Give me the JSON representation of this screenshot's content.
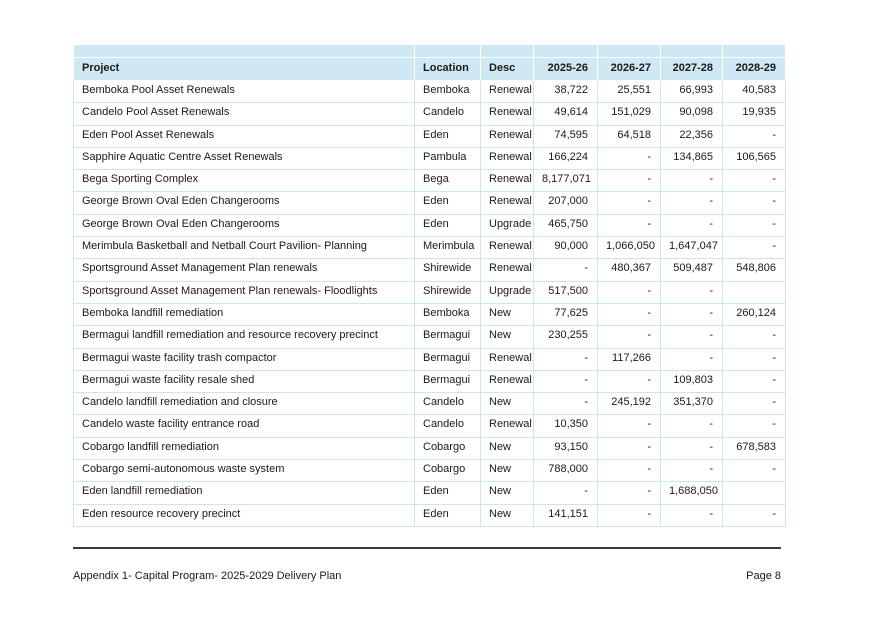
{
  "table": {
    "columns": [
      "Project",
      "Location",
      "Desc",
      "2025-26",
      "2026-27",
      "2027-28",
      "2028-29"
    ],
    "column_keys": [
      "project",
      "location",
      "desc",
      "2025-26",
      "2026-27",
      "2027-28",
      "2028-29"
    ],
    "rows": [
      [
        "Bemboka Pool Asset Renewals",
        "Bemboka",
        "Renewal",
        "38,722",
        "25,551",
        "66,993",
        "40,583"
      ],
      [
        "Candelo Pool Asset Renewals",
        "Candelo",
        "Renewal",
        "49,614",
        "151,029",
        "90,098",
        "19,935"
      ],
      [
        "Eden Pool Asset Renewals",
        "Eden",
        "Renewal",
        "74,595",
        "64,518",
        "22,356",
        "-"
      ],
      [
        "Sapphire Aquatic Centre Asset Renewals",
        "Pambula",
        "Renewal",
        "166,224",
        "-",
        "134,865",
        "106,565"
      ],
      [
        "Bega Sporting Complex",
        "Bega",
        "Renewal",
        "8,177,071",
        "-",
        "-",
        "-"
      ],
      [
        "George Brown Oval Eden Changerooms",
        "Eden",
        "Renewal",
        "207,000",
        "-",
        "-",
        "-"
      ],
      [
        "George Brown Oval Eden Changerooms",
        "Eden",
        "Upgrade",
        "465,750",
        "-",
        "-",
        "-"
      ],
      [
        "Merimbula Basketball and Netball Court Pavilion- Planning",
        "Merimbula",
        "Renewal",
        "90,000",
        "1,066,050",
        "1,647,047",
        "-"
      ],
      [
        "Sportsground Asset Management Plan renewals",
        "Shirewide",
        "Renewal",
        "-",
        "480,367",
        "509,487",
        "548,806"
      ],
      [
        "Sportsground Asset Management Plan renewals- Floodlights",
        "Shirewide",
        "Upgrade",
        "517,500",
        "-",
        "-",
        ""
      ],
      [
        "Bemboka landfill remediation",
        "Bemboka",
        "New",
        "77,625",
        "-",
        "-",
        "260,124"
      ],
      [
        "Bermagui landfill remediation and resource recovery precinct",
        "Bermagui",
        "New",
        "230,255",
        "-",
        "-",
        "-"
      ],
      [
        "Bermagui waste facility trash compactor",
        "Bermagui",
        "Renewal",
        "-",
        "117,266",
        "-",
        "-"
      ],
      [
        "Bermagui waste facility resale shed",
        "Bermagui",
        "Renewal",
        "-",
        "-",
        "109,803",
        "-"
      ],
      [
        "Candelo landfill remediation and closure",
        "Candelo",
        "New",
        "-",
        "245,192",
        "351,370",
        "-"
      ],
      [
        "Candelo waste facility entrance road",
        "Candelo",
        "Renewal",
        "10,350",
        "-",
        "-",
        "-"
      ],
      [
        "Cobargo landfill remediation",
        "Cobargo",
        "New",
        "93,150",
        "-",
        "-",
        "678,583"
      ],
      [
        "Cobargo semi-autonomous waste system",
        "Cobargo",
        "New",
        "788,000",
        "-",
        "-",
        "-"
      ],
      [
        "Eden landfill remediation",
        "Eden",
        "New",
        "-",
        "-",
        "1,688,050",
        ""
      ],
      [
        "Eden resource recovery precinct",
        "Eden",
        "New",
        "141,151",
        "-",
        "-",
        "-"
      ]
    ]
  },
  "footer": {
    "left_text": "Appendix 1- Capital Program- 2025-2029 Delivery Plan",
    "right_text": "Page 8"
  },
  "colors": {
    "header_bg": "#cee8f4",
    "grid_border": "#c9e6f3",
    "header_separator": "#ffffff",
    "footer_rule": "#3a3a3a",
    "text": "#1a1a1a"
  }
}
